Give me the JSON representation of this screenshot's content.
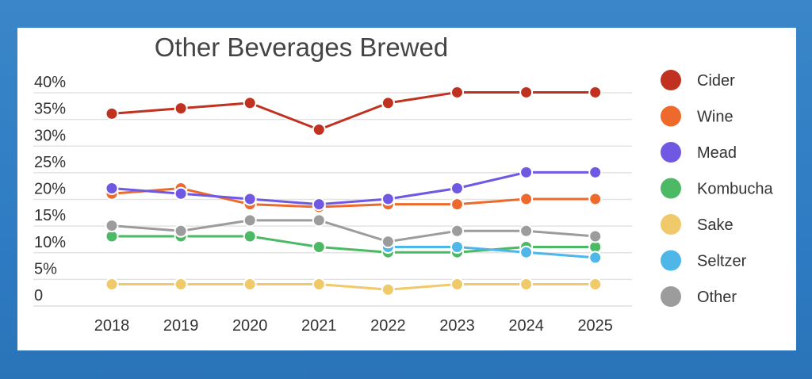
{
  "chart_data": {
    "type": "line",
    "title": "Other Beverages Brewed",
    "xlabel": "",
    "ylabel": "",
    "categories": [
      "2018",
      "2019",
      "2020",
      "2021",
      "2022",
      "2023",
      "2024",
      "2025"
    ],
    "y_ticks": [
      "0",
      "5%",
      "10%",
      "15%",
      "20%",
      "25%",
      "30%",
      "35%",
      "40%"
    ],
    "ylim": [
      0,
      40
    ],
    "grid": true,
    "legend_position": "right",
    "series": [
      {
        "name": "Cider",
        "color": "#c0321f",
        "values": [
          34,
          35,
          36,
          31,
          36,
          38,
          38,
          38
        ]
      },
      {
        "name": "Wine",
        "color": "#ee6a2c",
        "values": [
          19,
          20,
          17,
          16.5,
          17,
          17,
          18,
          18
        ]
      },
      {
        "name": "Mead",
        "color": "#7158e2",
        "values": [
          20,
          19,
          18,
          17,
          18,
          20,
          23,
          23
        ]
      },
      {
        "name": "Kombucha",
        "color": "#4cb964",
        "values": [
          11,
          11,
          11,
          9,
          8,
          8,
          9,
          9
        ]
      },
      {
        "name": "Sake",
        "color": "#f0c96a",
        "values": [
          2,
          2,
          2,
          2,
          1,
          2,
          2,
          2
        ]
      },
      {
        "name": "Seltzer",
        "color": "#4fb7e8",
        "values": [
          null,
          null,
          null,
          null,
          9,
          9,
          8,
          7
        ]
      },
      {
        "name": "Other",
        "color": "#9c9c9c",
        "values": [
          13,
          12,
          14,
          14,
          10,
          12,
          12,
          11
        ]
      }
    ]
  }
}
